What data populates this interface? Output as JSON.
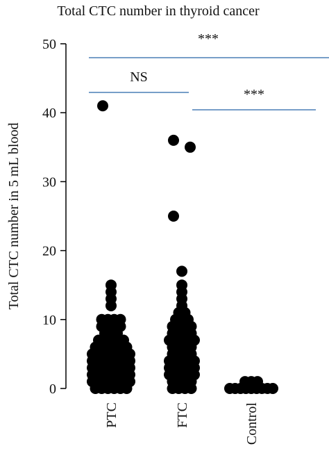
{
  "chart_data": {
    "type": "strip",
    "title": "Total CTC number in thyroid cancer",
    "y_label": "Total CTC number in 5 mL blood",
    "categories": [
      "PTC",
      "FTC",
      "Control"
    ],
    "values": [
      [
        41,
        15,
        14,
        13,
        12,
        10,
        10,
        10,
        10,
        9,
        9,
        9,
        9,
        8,
        8,
        8,
        7,
        7,
        7,
        7,
        7,
        6,
        6,
        6,
        6,
        6,
        6,
        5,
        5,
        5,
        5,
        5,
        5,
        5,
        4,
        4,
        4,
        4,
        4,
        4,
        4,
        3,
        3,
        3,
        3,
        3,
        3,
        3,
        2,
        2,
        2,
        2,
        2,
        2,
        2,
        1,
        1,
        1,
        1,
        1,
        1,
        1,
        0,
        0,
        0,
        0,
        0,
        0
      ],
      [
        36,
        35,
        25,
        17,
        15,
        14,
        13,
        12,
        11,
        11,
        10,
        10,
        10,
        9,
        9,
        9,
        9,
        8,
        8,
        8,
        8,
        7,
        7,
        7,
        7,
        7,
        6,
        6,
        6,
        6,
        5,
        5,
        5,
        5,
        4,
        4,
        4,
        4,
        4,
        3,
        3,
        3,
        3,
        3,
        2,
        2,
        2,
        2,
        2,
        1,
        1,
        1,
        1,
        0,
        0,
        0,
        0
      ],
      [
        1,
        1,
        1,
        0,
        0,
        0,
        0,
        0,
        0,
        0,
        0,
        0
      ]
    ],
    "color": "#000000",
    "ylim": [
      0,
      50
    ],
    "yticks": [
      0,
      10,
      20,
      30,
      40,
      50
    ],
    "annotations": [
      "***",
      "NS",
      "***"
    ]
  }
}
